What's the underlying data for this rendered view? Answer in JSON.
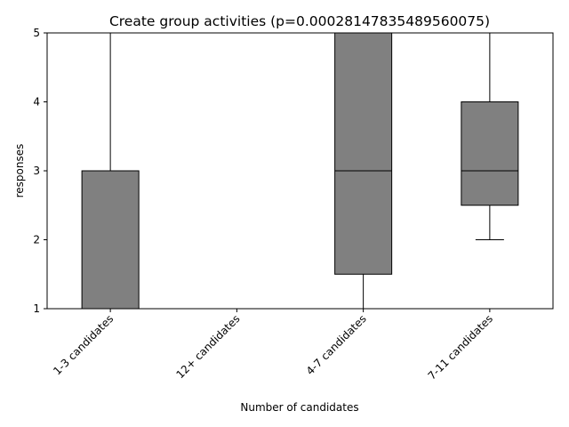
{
  "chart_data": {
    "type": "box",
    "title": "Create group activities (p=0.0002814783548956007​5)",
    "xlabel": "Number of candidates",
    "ylabel": "responses",
    "ylim": [
      1,
      5
    ],
    "yticks": [
      1,
      2,
      3,
      4,
      5
    ],
    "categories": [
      "1-3 candidates",
      "12+ candidates",
      "4-7 candidates",
      "7-11 candidates"
    ],
    "boxes": [
      {
        "whisker_low": 1,
        "q1": 1,
        "median": 1,
        "q3": 3,
        "whisker_high": 5
      },
      {
        "whisker_low": 5,
        "q1": 5,
        "median": 5,
        "q3": 5,
        "whisker_high": 5
      },
      {
        "whisker_low": 1,
        "q1": 1.5,
        "median": 3,
        "q3": 5,
        "whisker_high": 5
      },
      {
        "whisker_low": 2,
        "q1": 2.5,
        "median": 3,
        "q3": 4,
        "whisker_high": 5
      }
    ],
    "box_color": "#808080",
    "line_color": "#000000",
    "grid": false,
    "legend": "none"
  }
}
